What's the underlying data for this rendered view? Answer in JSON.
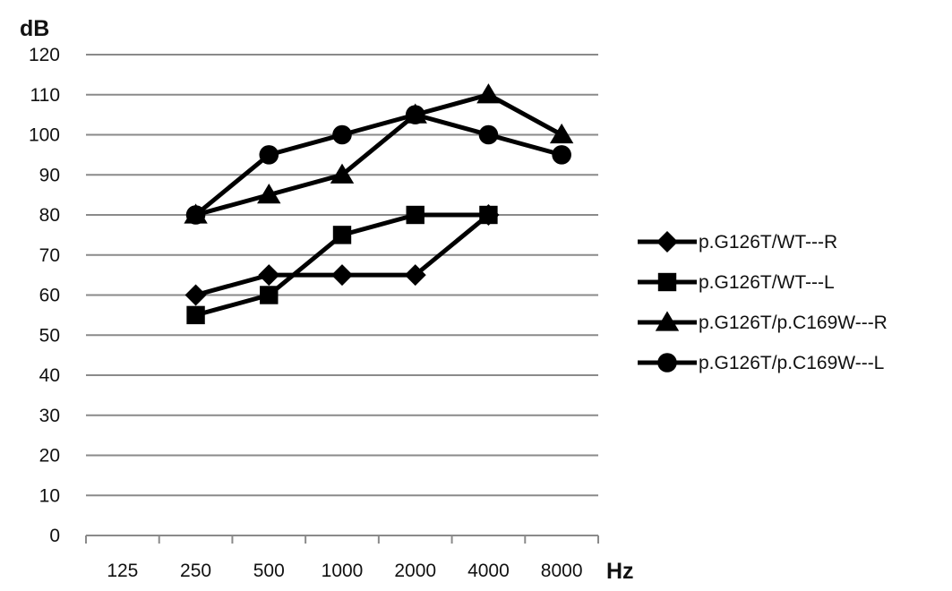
{
  "chart_data": {
    "type": "line",
    "ylabel": "dB",
    "xlabel": "Hz",
    "categories": [
      "125",
      "250",
      "500",
      "1000",
      "2000",
      "4000",
      "8000"
    ],
    "yticks": [
      "0",
      "10",
      "20",
      "30",
      "40",
      "50",
      "60",
      "70",
      "80",
      "90",
      "100",
      "110",
      "120"
    ],
    "ylim": [
      0,
      120
    ],
    "grid": true,
    "legend_position": "right",
    "series": [
      {
        "name": "p.G126T/WT---R",
        "marker": "diamond",
        "values": [
          null,
          60,
          65,
          65,
          65,
          80,
          null
        ]
      },
      {
        "name": "p.G126T/WT---L",
        "marker": "square",
        "values": [
          null,
          55,
          60,
          75,
          80,
          80,
          null
        ]
      },
      {
        "name": "p.G126T/p.C169W---R",
        "marker": "triangle",
        "values": [
          null,
          80,
          85,
          90,
          105,
          110,
          100
        ]
      },
      {
        "name": "p.G126T/p.C169W---L",
        "marker": "circle",
        "values": [
          null,
          80,
          95,
          100,
          105,
          100,
          95
        ]
      }
    ]
  }
}
